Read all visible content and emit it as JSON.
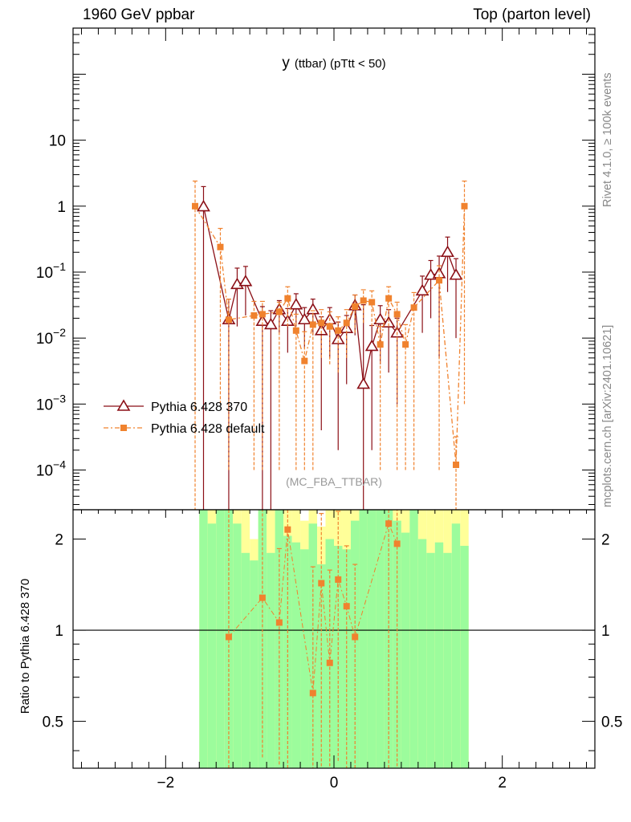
{
  "header": {
    "left": "1960 GeV ppbar",
    "right": "Top (parton level)"
  },
  "side_labels": {
    "rivet": "Rivet 4.1.0, ≥ 100k events",
    "mcplots": "mcplots.cern.ch [arXiv:2401.10621]"
  },
  "colors": {
    "series1": "#8b0f16",
    "series2": "#f0822e",
    "band_green": "#9cfc9c",
    "band_yellow": "#ffff99",
    "watermark": "#999999"
  },
  "chart_data": [
    {
      "type": "scatter",
      "panel": "main",
      "title": "y",
      "title_sub": "(ttbar) (pTtt < 50)",
      "watermark": "(MC_FBA_TTBAR)",
      "ylog": true,
      "xlim": [
        -3.1,
        3.1
      ],
      "ylim": [
        2.5e-05,
        500
      ],
      "yticks": [
        {
          "value": 10,
          "label": "10"
        },
        {
          "value": 1,
          "label": "1"
        },
        {
          "value": 0.1,
          "label": "10",
          "sup": "−1"
        },
        {
          "value": 0.01,
          "label": "10",
          "sup": "−2"
        },
        {
          "value": 0.001,
          "label": "10",
          "sup": "−3"
        },
        {
          "value": 0.0001,
          "label": "10",
          "sup": "−4"
        }
      ],
      "legend_position": "lower-left",
      "series": [
        {
          "name": "Pythia 6.428 370",
          "marker": "open-triangle",
          "line": "solid",
          "color": "#8b0f16",
          "points": [
            {
              "x": -1.55,
              "y": 0.98,
              "yerr": [
                0.98,
                1.0
              ]
            },
            {
              "x": -1.25,
              "y": 0.019,
              "yerr": [
                0.019,
                0.02
              ]
            },
            {
              "x": -1.15,
              "y": 0.065,
              "yerr": [
                0.05,
                0.05
              ]
            },
            {
              "x": -1.05,
              "y": 0.072,
              "yerr": [
                0.05,
                0.05
              ]
            },
            {
              "x": -0.85,
              "y": 0.018,
              "yerr": [
                0.018,
                0.012
              ]
            },
            {
              "x": -0.75,
              "y": 0.016,
              "yerr": [
                0.016,
                0.01
              ]
            },
            {
              "x": -0.65,
              "y": 0.027,
              "yerr": [
                0.015,
                0.01
              ]
            },
            {
              "x": -0.55,
              "y": 0.018,
              "yerr": [
                0.012,
                0.01
              ]
            },
            {
              "x": -0.45,
              "y": 0.032,
              "yerr": [
                0.017,
                0.015
              ]
            },
            {
              "x": -0.35,
              "y": 0.019,
              "yerr": [
                0.012,
                0.01
              ]
            },
            {
              "x": -0.25,
              "y": 0.027,
              "yerr": [
                0.016,
                0.012
              ]
            },
            {
              "x": -0.15,
              "y": 0.013,
              "yerr": [
                0.0126,
                0.008
              ]
            },
            {
              "x": -0.05,
              "y": 0.019,
              "yerr": [
                0.014,
                0.01
              ]
            },
            {
              "x": 0.05,
              "y": 0.0095,
              "yerr": [
                0.0093,
                0.008
              ]
            },
            {
              "x": 0.15,
              "y": 0.014,
              "yerr": [
                0.012,
                0.008
              ]
            },
            {
              "x": 0.25,
              "y": 0.031,
              "yerr": [
                0.02,
                0.014
              ]
            },
            {
              "x": 0.35,
              "y": 0.002,
              "yerr": [
                0.00199,
                0.03
              ]
            },
            {
              "x": 0.45,
              "y": 0.0075,
              "yerr": [
                0.0073,
                0.008
              ]
            },
            {
              "x": 0.55,
              "y": 0.019,
              "yerr": [
                0.015,
                0.012
              ]
            },
            {
              "x": 0.65,
              "y": 0.017,
              "yerr": [
                0.014,
                0.01
              ]
            },
            {
              "x": 0.75,
              "y": 0.012,
              "yerr": [
                0.011,
                0.008
              ]
            },
            {
              "x": 1.05,
              "y": 0.052,
              "yerr": [
                0.04,
                0.035
              ]
            },
            {
              "x": 1.15,
              "y": 0.09,
              "yerr": [
                0.07,
                0.06
              ]
            },
            {
              "x": 1.25,
              "y": 0.095,
              "yerr": [
                0.09,
                0.08
              ]
            },
            {
              "x": 1.35,
              "y": 0.2,
              "yerr": [
                0.15,
                0.14
              ]
            },
            {
              "x": 1.45,
              "y": 0.09,
              "yerr": [
                0.08,
                0.07
              ]
            }
          ]
        },
        {
          "name": "Pythia 6.428 default",
          "marker": "filled-square",
          "line": "dash-dot",
          "color": "#f0822e",
          "points": [
            {
              "x": -1.65,
              "y": 1.0,
              "yerr": [
                1.0,
                1.4
              ]
            },
            {
              "x": -1.35,
              "y": 0.24,
              "yerr": [
                0.239,
                0.22
              ]
            },
            {
              "x": -1.25,
              "y": 0.019,
              "yerr": [
                0.0189,
                0.02
              ]
            },
            {
              "x": -0.95,
              "y": 0.022,
              "yerr": [
                0.0219,
                0.014
              ]
            },
            {
              "x": -0.85,
              "y": 0.023,
              "yerr": [
                0.0229,
                0.013
              ]
            },
            {
              "x": -0.65,
              "y": 0.025,
              "yerr": [
                0.0249,
                0.01
              ]
            },
            {
              "x": -0.55,
              "y": 0.04,
              "yerr": [
                0.025,
                0.02
              ]
            },
            {
              "x": -0.45,
              "y": 0.013,
              "yerr": [
                0.0129,
                0.01
              ]
            },
            {
              "x": -0.35,
              "y": 0.0045,
              "yerr": [
                0.0044,
                0.008
              ]
            },
            {
              "x": -0.25,
              "y": 0.016,
              "yerr": [
                0.0159,
                0.01
              ]
            },
            {
              "x": -0.15,
              "y": 0.017,
              "yerr": [
                0.012,
                0.01
              ]
            },
            {
              "x": -0.05,
              "y": 0.015,
              "yerr": [
                0.011,
                0.01
              ]
            },
            {
              "x": 0.05,
              "y": 0.013,
              "yerr": [
                0.01,
                0.008
              ]
            },
            {
              "x": 0.15,
              "y": 0.017,
              "yerr": [
                0.012,
                0.01
              ]
            },
            {
              "x": 0.25,
              "y": 0.03,
              "yerr": [
                0.018,
                0.015
              ]
            },
            {
              "x": 0.35,
              "y": 0.037,
              "yerr": [
                0.02,
                0.017
              ]
            },
            {
              "x": 0.45,
              "y": 0.035,
              "yerr": [
                0.02,
                0.017
              ]
            },
            {
              "x": 0.55,
              "y": 0.008,
              "yerr": [
                0.0079,
                0.007
              ]
            },
            {
              "x": 0.65,
              "y": 0.04,
              "yerr": [
                0.025,
                0.02
              ]
            },
            {
              "x": 0.75,
              "y": 0.023,
              "yerr": [
                0.0229,
                0.012
              ]
            },
            {
              "x": 0.85,
              "y": 0.008,
              "yerr": [
                0.0079,
                0.008
              ]
            },
            {
              "x": 0.95,
              "y": 0.029,
              "yerr": [
                0.0289,
                0.02
              ]
            },
            {
              "x": 1.25,
              "y": 0.075,
              "yerr": [
                0.0749,
                0.05
              ]
            },
            {
              "x": 1.45,
              "y": 0.00012,
              "yerr": [
                0.000119,
                0.0002
              ]
            },
            {
              "x": 1.55,
              "y": 1.0,
              "yerr": [
                0.999,
                1.4
              ]
            }
          ]
        }
      ]
    },
    {
      "type": "scatter",
      "panel": "ratio",
      "ylabel": "Ratio to Pythia 6.428 370",
      "xlim": [
        -3.1,
        3.1
      ],
      "ylim": [
        0.35,
        2.5
      ],
      "xticks": [
        {
          "value": -2,
          "label": "−2"
        },
        {
          "value": 0,
          "label": "0"
        },
        {
          "value": 2,
          "label": "2"
        }
      ],
      "yticks": [
        {
          "value": 2,
          "label": "2"
        },
        {
          "value": 1,
          "label": "1"
        },
        {
          "value": 0.5,
          "label": "0.5"
        }
      ],
      "reference_line": 1,
      "bands": {
        "edges": [
          -1.6,
          -1.5,
          -1.4,
          -1.3,
          -1.2,
          -1.1,
          -1.0,
          -0.9,
          -0.8,
          -0.7,
          -0.6,
          -0.5,
          -0.4,
          -0.3,
          -0.2,
          -0.1,
          0.0,
          0.1,
          0.2,
          0.3,
          0.4,
          0.5,
          0.6,
          0.7,
          0.8,
          0.9,
          1.0,
          1.1,
          1.2,
          1.3,
          1.4,
          1.5,
          1.6
        ],
        "green": [
          [
            0.3,
            3
          ],
          [
            0.3,
            2.25
          ],
          [
            0.3,
            3
          ],
          [
            0.3,
            3
          ],
          [
            0.3,
            2.25
          ],
          [
            0.3,
            1.8
          ],
          [
            0.3,
            1.7
          ],
          [
            0.3,
            2.5
          ],
          [
            0.3,
            1.8
          ],
          [
            0.3,
            3
          ],
          [
            0.3,
            2.05
          ],
          [
            0.3,
            1.95
          ],
          [
            0.3,
            1.85
          ],
          [
            0.3,
            2.25
          ],
          [
            0.3,
            1.65
          ],
          [
            0.3,
            2.0
          ],
          [
            0.3,
            1.9
          ],
          [
            0.3,
            1.85
          ],
          [
            0.3,
            2.3
          ],
          [
            0.3,
            3
          ],
          [
            0.3,
            3
          ],
          [
            0.3,
            3
          ],
          [
            0.3,
            3
          ],
          [
            0.3,
            2.3
          ],
          [
            0.3,
            2.1
          ],
          [
            0.3,
            3
          ],
          [
            0.3,
            2.0
          ],
          [
            0.3,
            1.8
          ],
          [
            0.3,
            1.95
          ],
          [
            0.3,
            1.8
          ],
          [
            0.3,
            2.25
          ],
          [
            0.3,
            1.9
          ]
        ],
        "yellow": [
          [
            0.3,
            3
          ],
          [
            0.3,
            3
          ],
          [
            0.3,
            3
          ],
          [
            0.3,
            3
          ],
          [
            0.3,
            3
          ],
          [
            0.3,
            3
          ],
          [
            0.3,
            2.0
          ],
          [
            0.3,
            3
          ],
          [
            0.3,
            3
          ],
          [
            0.3,
            3
          ],
          [
            0.3,
            3
          ],
          [
            0.3,
            3
          ],
          [
            0.3,
            2.3
          ],
          [
            0.3,
            3
          ],
          [
            0.3,
            2.2
          ],
          [
            0.3,
            3
          ],
          [
            0.3,
            3
          ],
          [
            0.3,
            3
          ],
          [
            0.3,
            3
          ],
          [
            0.3,
            3
          ],
          [
            0.3,
            3
          ],
          [
            0.3,
            3
          ],
          [
            0.3,
            3
          ],
          [
            0.3,
            3
          ],
          [
            0.3,
            3
          ],
          [
            0.3,
            3
          ],
          [
            0.3,
            3
          ],
          [
            0.3,
            3
          ],
          [
            0.3,
            3
          ],
          [
            0.3,
            3
          ],
          [
            0.3,
            3
          ],
          [
            0.3,
            3
          ]
        ]
      },
      "series": [
        {
          "name": "Pythia 6.428 default",
          "color": "#f0822e",
          "points": [
            {
              "x": -1.25,
              "y": 0.95,
              "yerr": [
                0.6,
                1.6
              ]
            },
            {
              "x": -0.85,
              "y": 1.28,
              "yerr": [
                0.9,
                1.3
              ]
            },
            {
              "x": -0.65,
              "y": 1.06,
              "yerr": [
                0.7,
                0.8
              ]
            },
            {
              "x": -0.55,
              "y": 2.15,
              "yerr": [
                1.8,
                0.5
              ]
            },
            {
              "x": -0.25,
              "y": 0.62,
              "yerr": [
                0.3,
                1.0
              ]
            },
            {
              "x": -0.15,
              "y": 1.43,
              "yerr": [
                1.1,
                1.0
              ]
            },
            {
              "x": -0.05,
              "y": 0.78,
              "yerr": [
                0.45,
                0.8
              ]
            },
            {
              "x": 0.05,
              "y": 1.47,
              "yerr": [
                1.1,
                1.0
              ]
            },
            {
              "x": 0.15,
              "y": 1.2,
              "yerr": [
                0.9,
                0.7
              ]
            },
            {
              "x": 0.25,
              "y": 0.95,
              "yerr": [
                0.6,
                0.7
              ]
            },
            {
              "x": 0.65,
              "y": 2.25,
              "yerr": [
                1.9,
                0.4
              ]
            },
            {
              "x": 0.75,
              "y": 1.93,
              "yerr": [
                1.6,
                0.6
              ]
            }
          ]
        }
      ]
    }
  ]
}
